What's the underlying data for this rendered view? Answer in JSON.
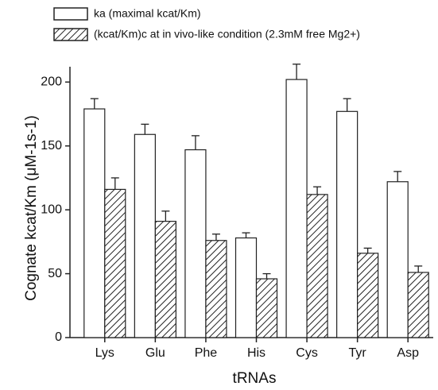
{
  "chart_data": {
    "type": "bar",
    "categories": [
      "Lys",
      "Glu",
      "Phe",
      "His",
      "Cys",
      "Tyr",
      "Asp"
    ],
    "series": [
      {
        "name": "ka (maximal kcat/Km)",
        "color": "#ffffff",
        "pattern": "none",
        "values": [
          179,
          159,
          147,
          78,
          202,
          177,
          122
        ],
        "errors": [
          8,
          8,
          11,
          4,
          12,
          10,
          8
        ]
      },
      {
        "name": "(kcat/Km)c at in vivo-like condition (2.3mM free Mg2+)",
        "color": "#ffffff",
        "pattern": "hatch",
        "values": [
          116,
          91,
          76,
          46,
          112,
          66,
          51
        ],
        "errors": [
          9,
          8,
          5,
          4,
          6,
          4,
          5
        ]
      }
    ],
    "x_label": "tRNAs",
    "y_label": "Cognate kcat/Km (μM-1s-1)",
    "ylim": [
      0,
      212
    ],
    "yticks": [
      0,
      50,
      100,
      150,
      200
    ],
    "grid": false,
    "legend": "top"
  }
}
